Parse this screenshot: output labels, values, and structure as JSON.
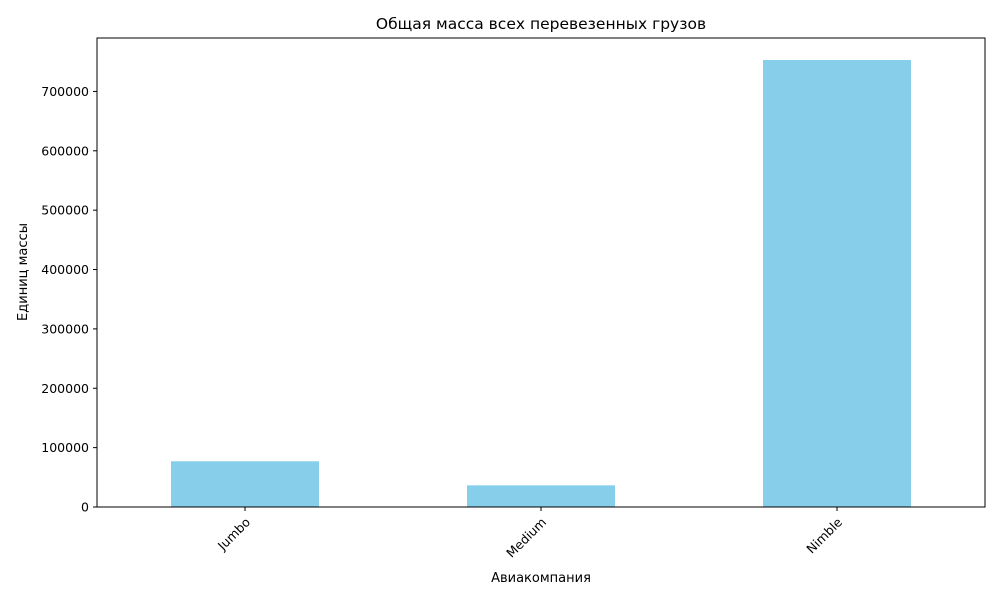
{
  "chart_data": {
    "type": "bar",
    "title": "Общая масса всех перевезенных грузов",
    "xlabel": "Авиакомпания",
    "ylabel": "Единиц массы",
    "categories": [
      "Jumbo",
      "Medium",
      "Nimble"
    ],
    "values": [
      77000,
      36500,
      753000
    ],
    "ylim": [
      0,
      790000
    ],
    "yticks": [
      0,
      100000,
      200000,
      300000,
      400000,
      500000,
      600000,
      700000
    ],
    "ytick_labels": [
      "0",
      "100000",
      "200000",
      "300000",
      "400000",
      "500000",
      "600000",
      "700000"
    ],
    "bar_color": "#87ceeb",
    "xtick_rotation": 45,
    "grid": false,
    "legend": "none"
  }
}
